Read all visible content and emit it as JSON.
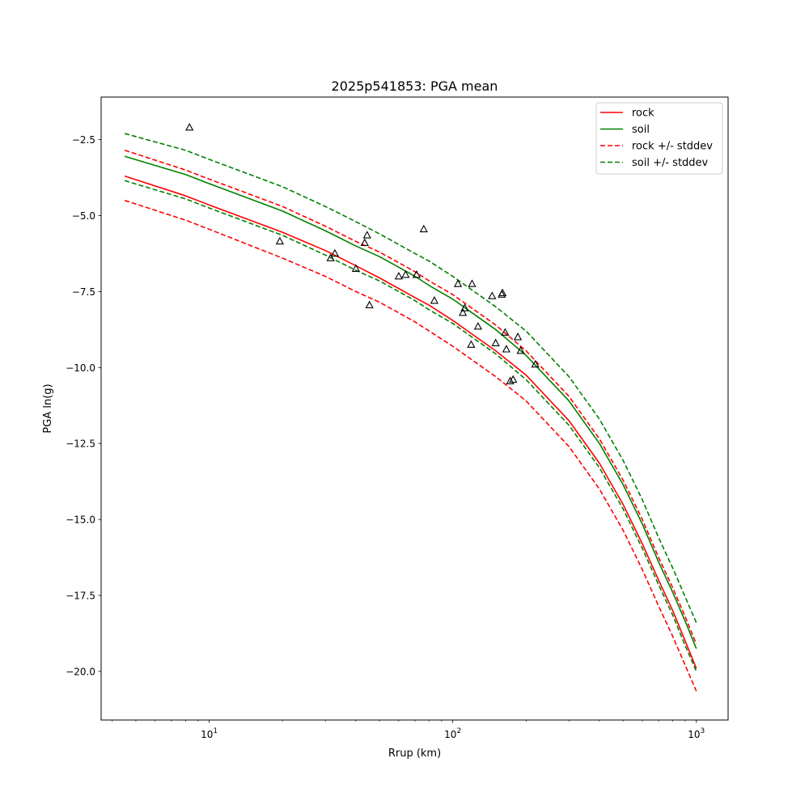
{
  "chart_data": {
    "type": "line",
    "title": "2025p541853: PGA mean",
    "xlabel": "Rrup (km)",
    "ylabel": "PGA ln(g)",
    "xscale": "log",
    "xlim": [
      3.6,
      1350
    ],
    "ylim": [
      -21.6,
      -1.1
    ],
    "x_ticks": [
      {
        "value": 10,
        "base": "10",
        "exp": "1"
      },
      {
        "value": 100,
        "base": "10",
        "exp": "2"
      },
      {
        "value": 1000,
        "base": "10",
        "exp": "3"
      }
    ],
    "y_ticks": [
      {
        "value": -2.5,
        "label": "−2.5"
      },
      {
        "value": -5.0,
        "label": "−5.0"
      },
      {
        "value": -7.5,
        "label": "−7.5"
      },
      {
        "value": -10.0,
        "label": "−10.0"
      },
      {
        "value": -12.5,
        "label": "−12.5"
      },
      {
        "value": -15.0,
        "label": "−15.0"
      },
      {
        "value": -17.5,
        "label": "−17.5"
      },
      {
        "value": -20.0,
        "label": "−20.0"
      }
    ],
    "grid": false,
    "legend_position": "top-right",
    "series": [
      {
        "name": "rock",
        "style": "solid",
        "color": "#ff0000",
        "x": [
          4.5,
          8,
          10,
          20,
          30,
          40,
          50,
          60,
          70,
          80,
          100,
          120,
          150,
          200,
          300,
          400,
          500,
          600,
          700,
          800,
          900,
          1000
        ],
        "y": [
          -3.7,
          -4.35,
          -4.65,
          -5.55,
          -6.15,
          -6.65,
          -7.05,
          -7.4,
          -7.7,
          -7.95,
          -8.45,
          -8.9,
          -9.45,
          -10.25,
          -11.75,
          -13.15,
          -14.5,
          -15.8,
          -17.0,
          -18.0,
          -19.0,
          -19.9
        ]
      },
      {
        "name": "soil",
        "style": "solid",
        "color": "#008000",
        "x": [
          4.5,
          8,
          10,
          20,
          30,
          40,
          50,
          60,
          70,
          80,
          100,
          120,
          150,
          200,
          300,
          400,
          500,
          600,
          700,
          800,
          900,
          1000
        ],
        "y": [
          -3.05,
          -3.65,
          -3.95,
          -4.85,
          -5.5,
          -6.0,
          -6.35,
          -6.7,
          -7.0,
          -7.3,
          -7.75,
          -8.2,
          -8.75,
          -9.6,
          -11.1,
          -12.5,
          -13.85,
          -15.15,
          -16.4,
          -17.4,
          -18.35,
          -19.25
        ]
      },
      {
        "name": "rock +/- stddev",
        "style": "dashed",
        "color": "#ff0000",
        "x": [
          4.5,
          8,
          10,
          20,
          30,
          40,
          50,
          60,
          70,
          80,
          100,
          120,
          150,
          200,
          300,
          400,
          500,
          600,
          700,
          800,
          900,
          1000
        ],
        "y": [
          -2.85,
          -3.5,
          -3.8,
          -4.7,
          -5.35,
          -5.85,
          -6.2,
          -6.55,
          -6.85,
          -7.15,
          -7.6,
          -8.05,
          -8.6,
          -9.45,
          -10.95,
          -12.35,
          -13.7,
          -15.0,
          -16.25,
          -17.25,
          -18.2,
          -19.1
        ]
      },
      {
        "name": "rock +/- stddev",
        "style": "dashed",
        "color": "#ff0000",
        "legend": false,
        "x": [
          4.5,
          8,
          10,
          20,
          30,
          40,
          50,
          60,
          70,
          80,
          100,
          120,
          150,
          200,
          300,
          400,
          500,
          600,
          700,
          800,
          900,
          1000
        ],
        "y": [
          -4.5,
          -5.15,
          -5.45,
          -6.4,
          -7.0,
          -7.5,
          -7.85,
          -8.2,
          -8.5,
          -8.8,
          -9.3,
          -9.75,
          -10.3,
          -11.1,
          -12.6,
          -14.0,
          -15.35,
          -16.65,
          -17.85,
          -18.85,
          -19.8,
          -20.65
        ]
      },
      {
        "name": "soil +/- stddev",
        "style": "dashed",
        "color": "#008000",
        "x": [
          4.5,
          8,
          10,
          20,
          30,
          40,
          50,
          60,
          70,
          80,
          100,
          120,
          150,
          200,
          300,
          400,
          500,
          600,
          700,
          800,
          900,
          1000
        ],
        "y": [
          -2.3,
          -2.85,
          -3.15,
          -4.05,
          -4.7,
          -5.2,
          -5.6,
          -5.95,
          -6.25,
          -6.5,
          -7.0,
          -7.45,
          -8.0,
          -8.8,
          -10.3,
          -11.7,
          -13.05,
          -14.35,
          -15.6,
          -16.6,
          -17.55,
          -18.4
        ]
      },
      {
        "name": "soil +/- stddev",
        "style": "dashed",
        "color": "#008000",
        "legend": false,
        "x": [
          4.5,
          8,
          10,
          20,
          30,
          40,
          50,
          60,
          70,
          80,
          100,
          120,
          150,
          200,
          300,
          400,
          500,
          600,
          700,
          800,
          900,
          1000
        ],
        "y": [
          -3.85,
          -4.45,
          -4.75,
          -5.65,
          -6.3,
          -6.8,
          -7.15,
          -7.5,
          -7.8,
          -8.1,
          -8.55,
          -9.0,
          -9.55,
          -10.4,
          -11.9,
          -13.3,
          -14.65,
          -15.95,
          -17.15,
          -18.15,
          -19.15,
          -20.0
        ]
      }
    ],
    "scatter": {
      "marker": "triangle-open",
      "color": "#000000",
      "x": [
        8.3,
        19.5,
        31.5,
        32.8,
        40,
        43.5,
        44.5,
        45.5,
        60,
        64,
        71,
        76,
        84,
        105,
        110,
        112,
        119,
        120,
        127,
        145,
        150,
        159,
        160,
        164,
        166,
        172,
        177,
        185,
        190,
        218
      ],
      "y": [
        -2.1,
        -5.85,
        -6.4,
        -6.25,
        -6.75,
        -5.9,
        -5.65,
        -7.95,
        -7.0,
        -6.95,
        -6.95,
        -5.45,
        -7.8,
        -7.25,
        -8.2,
        -8.05,
        -9.25,
        -7.25,
        -8.65,
        -7.65,
        -9.2,
        -7.6,
        -7.55,
        -8.85,
        -9.4,
        -10.45,
        -10.4,
        -9.0,
        -9.45,
        -9.9
      ]
    }
  }
}
